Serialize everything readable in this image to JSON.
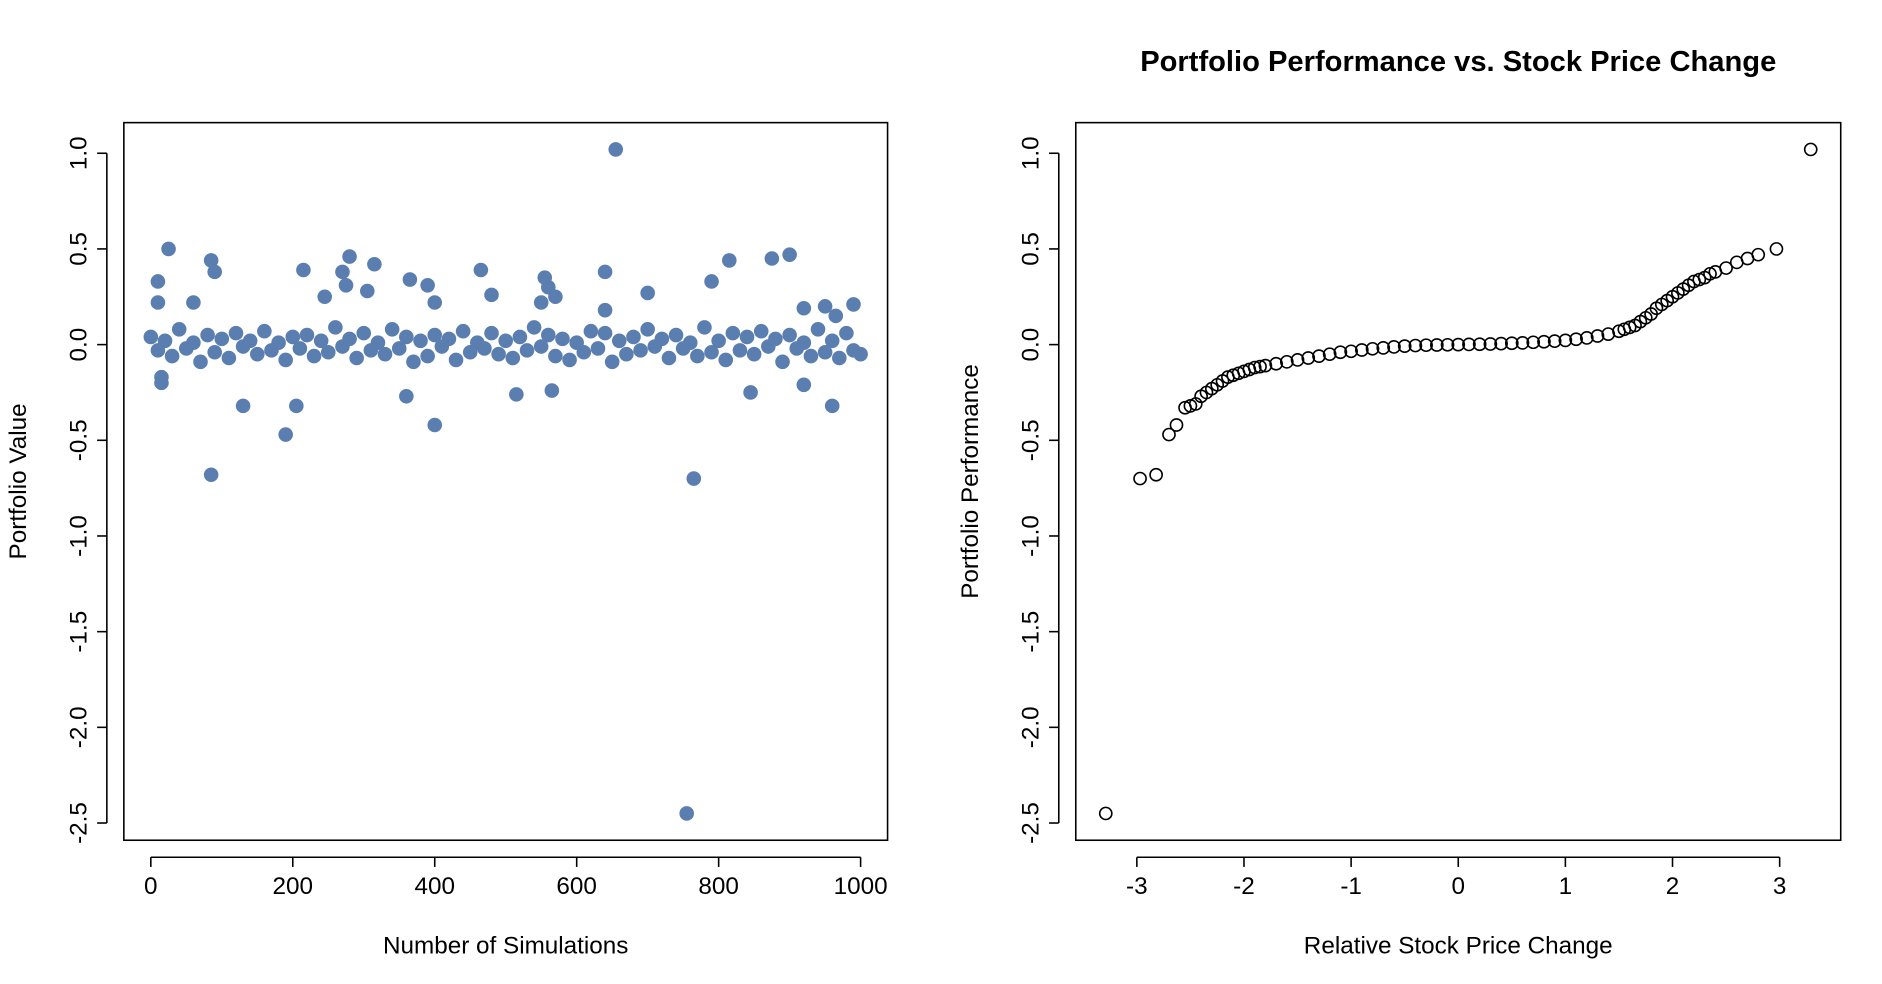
{
  "chart_data": [
    {
      "type": "scatter",
      "marker": "filled",
      "color": "#5b7eb1",
      "xlabel": "Number of Simulations",
      "ylabel": "Portfolio Value",
      "x": [
        0,
        10,
        20,
        30,
        40,
        50,
        60,
        70,
        80,
        90,
        100,
        110,
        120,
        130,
        140,
        150,
        160,
        170,
        180,
        190,
        200,
        210,
        220,
        230,
        240,
        250,
        260,
        270,
        280,
        290,
        300,
        310,
        320,
        330,
        340,
        350,
        360,
        370,
        380,
        390,
        400,
        410,
        420,
        430,
        440,
        450,
        460,
        470,
        480,
        490,
        500,
        510,
        520,
        530,
        540,
        550,
        560,
        570,
        580,
        590,
        600,
        610,
        620,
        630,
        640,
        650,
        660,
        670,
        680,
        690,
        700,
        710,
        720,
        730,
        740,
        750,
        760,
        770,
        780,
        790,
        800,
        810,
        820,
        830,
        840,
        850,
        860,
        870,
        880,
        890,
        900,
        910,
        920,
        930,
        940,
        950,
        960,
        970,
        980,
        990,
        1000,
        25,
        10,
        10,
        15,
        15,
        85,
        90,
        60,
        85,
        130,
        190,
        205,
        215,
        280,
        270,
        275,
        245,
        305,
        315,
        365,
        390,
        400,
        400,
        360,
        465,
        480,
        555,
        560,
        570,
        550,
        515,
        565,
        640,
        640,
        655,
        700,
        755,
        765,
        790,
        815,
        845,
        875,
        900,
        920,
        920,
        950,
        960,
        965,
        990
      ],
      "y": [
        0.04,
        -0.03,
        0.02,
        -0.06,
        0.08,
        -0.02,
        0.01,
        -0.09,
        0.05,
        -0.04,
        0.03,
        -0.07,
        0.06,
        -0.01,
        0.02,
        -0.05,
        0.07,
        -0.03,
        0.01,
        -0.08,
        0.04,
        -0.02,
        0.05,
        -0.06,
        0.02,
        -0.04,
        0.09,
        -0.01,
        0.03,
        -0.07,
        0.06,
        -0.03,
        0.01,
        -0.05,
        0.08,
        -0.02,
        0.04,
        -0.09,
        0.02,
        -0.06,
        0.05,
        -0.01,
        0.03,
        -0.08,
        0.07,
        -0.04,
        0.01,
        -0.02,
        0.06,
        -0.05,
        0.02,
        -0.07,
        0.04,
        -0.03,
        0.09,
        -0.01,
        0.05,
        -0.06,
        0.03,
        -0.08,
        0.01,
        -0.04,
        0.07,
        -0.02,
        0.06,
        -0.09,
        0.02,
        -0.05,
        0.04,
        -0.03,
        0.08,
        -0.01,
        0.03,
        -0.07,
        0.05,
        -0.02,
        0.01,
        -0.06,
        0.09,
        -0.04,
        0.02,
        -0.08,
        0.06,
        -0.03,
        0.04,
        -0.05,
        0.07,
        -0.01,
        0.03,
        -0.09,
        0.05,
        -0.02,
        0.01,
        -0.06,
        0.08,
        -0.04,
        0.02,
        -0.07,
        0.06,
        -0.03,
        -0.05,
        0.5,
        0.33,
        0.22,
        -0.17,
        -0.2,
        0.44,
        0.38,
        0.22,
        -0.68,
        -0.32,
        -0.47,
        -0.32,
        0.39,
        0.46,
        0.38,
        0.31,
        0.25,
        0.28,
        0.42,
        0.34,
        0.31,
        0.22,
        -0.42,
        -0.27,
        0.39,
        0.26,
        0.35,
        0.3,
        0.25,
        0.22,
        -0.26,
        -0.24,
        0.38,
        0.18,
        1.02,
        0.27,
        -2.45,
        -0.7,
        0.33,
        0.44,
        -0.25,
        0.45,
        0.47,
        0.19,
        -0.21,
        0.2,
        -0.32,
        0.15,
        0.21
      ],
      "xlim": [
        -38,
        1038
      ],
      "ylim": [
        -2.59,
        1.16
      ],
      "xticks": [
        0,
        200,
        400,
        600,
        800,
        1000
      ],
      "yticks": [
        {
          "value": -2.5,
          "label": "-2.5"
        },
        {
          "value": -2,
          "label": "-2.0"
        },
        -1.5,
        {
          "value": -1,
          "label": "-1.0"
        },
        -0.5,
        {
          "value": 0,
          "label": "0.0"
        },
        0.5,
        {
          "value": 1,
          "label": "1.0"
        }
      ]
    },
    {
      "type": "scatter",
      "marker": "open",
      "color": "#000000",
      "title": "Portfolio Performance vs. Stock Price Change",
      "xlabel": "Relative Stock Price Change",
      "ylabel": "Portfolio Performance",
      "x": [
        -3.29,
        -2.97,
        -2.82,
        -2.7,
        -2.63,
        -2.55,
        -2.5,
        -2.45,
        -2.4,
        -2.35,
        -2.3,
        -2.25,
        -2.2,
        -2.15,
        -2.1,
        -2.05,
        -2.0,
        -1.95,
        -1.9,
        -1.85,
        -1.8,
        -1.7,
        -1.6,
        -1.5,
        -1.4,
        -1.3,
        -1.2,
        -1.1,
        -1.0,
        -0.9,
        -0.8,
        -0.7,
        -0.6,
        -0.5,
        -0.4,
        -0.3,
        -0.2,
        -0.1,
        0,
        0.1,
        0.2,
        0.3,
        0.4,
        0.5,
        0.6,
        0.7,
        0.8,
        0.9,
        1.0,
        1.1,
        1.2,
        1.3,
        1.4,
        1.5,
        1.55,
        1.6,
        1.65,
        1.7,
        1.75,
        1.8,
        1.85,
        1.9,
        1.95,
        2.0,
        2.05,
        2.1,
        2.15,
        2.2,
        2.25,
        2.3,
        2.35,
        2.4,
        2.5,
        2.6,
        2.7,
        2.8,
        2.97,
        3.29
      ],
      "y": [
        -2.45,
        -0.7,
        -0.68,
        -0.47,
        -0.42,
        -0.33,
        -0.32,
        -0.31,
        -0.27,
        -0.25,
        -0.23,
        -0.21,
        -0.19,
        -0.17,
        -0.16,
        -0.15,
        -0.14,
        -0.13,
        -0.12,
        -0.115,
        -0.11,
        -0.1,
        -0.09,
        -0.08,
        -0.07,
        -0.06,
        -0.05,
        -0.04,
        -0.035,
        -0.028,
        -0.022,
        -0.017,
        -0.012,
        -0.008,
        -0.005,
        -0.003,
        -0.002,
        -0.001,
        0,
        0.001,
        0.002,
        0.003,
        0.005,
        0.007,
        0.009,
        0.012,
        0.015,
        0.018,
        0.022,
        0.028,
        0.035,
        0.045,
        0.055,
        0.07,
        0.08,
        0.09,
        0.1,
        0.12,
        0.14,
        0.16,
        0.19,
        0.21,
        0.23,
        0.25,
        0.27,
        0.29,
        0.31,
        0.33,
        0.34,
        0.35,
        0.37,
        0.38,
        0.4,
        0.43,
        0.45,
        0.47,
        0.5,
        1.02
      ],
      "xlim": [
        -3.57,
        3.57
      ],
      "ylim": [
        -2.59,
        1.16
      ],
      "xticks": [
        -3,
        -2,
        -1,
        0,
        1,
        2,
        3
      ],
      "yticks": [
        {
          "value": -2.5,
          "label": "-2.5"
        },
        {
          "value": -2,
          "label": "-2.0"
        },
        -1.5,
        {
          "value": -1,
          "label": "-1.0"
        },
        -0.5,
        {
          "value": 0,
          "label": "0.0"
        },
        0.5,
        {
          "value": 1,
          "label": "1.0"
        }
      ]
    }
  ]
}
